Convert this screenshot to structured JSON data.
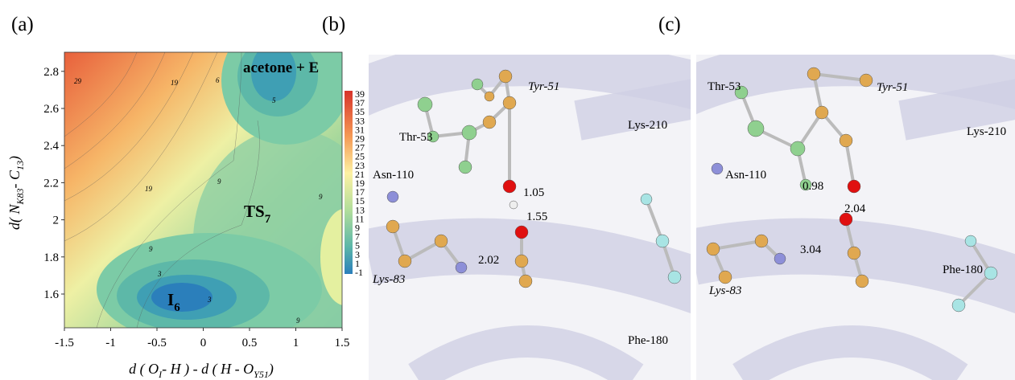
{
  "panel_a": {
    "label": "(a)",
    "x_axis": {
      "label": [
        "d ( O",
        "I",
        "- H ) - d ( H - O",
        "Y51",
        ")"
      ],
      "ticks": [
        "-1.5",
        "-1",
        "-0.5",
        "0",
        "0.5",
        "1",
        "1.5"
      ]
    },
    "y_axis": {
      "label": [
        "d( N",
        "K83",
        "- C",
        "13",
        ")"
      ],
      "ticks": [
        "1.6",
        "1.8",
        "2",
        "2.2",
        "2.4",
        "2.6",
        "2.8"
      ]
    },
    "colorbar_ticks": [
      "39",
      "37",
      "35",
      "33",
      "31",
      "29",
      "27",
      "25",
      "23",
      "21",
      "19",
      "17",
      "15",
      "13",
      "11",
      "9",
      "7",
      "5",
      "3",
      "1",
      "-1"
    ],
    "contour_labels": [
      "29",
      "19",
      "6",
      "5",
      "19",
      "9",
      "9",
      "3",
      "3",
      "9",
      "9"
    ],
    "annotations": {
      "product": "acetone + E",
      "ts": [
        "TS",
        "7"
      ],
      "intermediate": [
        "I",
        "6"
      ]
    }
  },
  "panel_b": {
    "label": "(b)",
    "residues": [
      "Tyr-51",
      "Thr-53",
      "Lys-210",
      "Asn-110",
      "Lys-83",
      "Phe-180"
    ],
    "distances": [
      "1.05",
      "1.55",
      "2.02"
    ]
  },
  "panel_c": {
    "label": "(c)",
    "residues": [
      "Thr-53",
      "Tyr-51",
      "Lys-210",
      "Asn-110",
      "Phe-180",
      "Lys-83"
    ],
    "distances": [
      "0.98",
      "2.04",
      "3.04"
    ]
  }
}
